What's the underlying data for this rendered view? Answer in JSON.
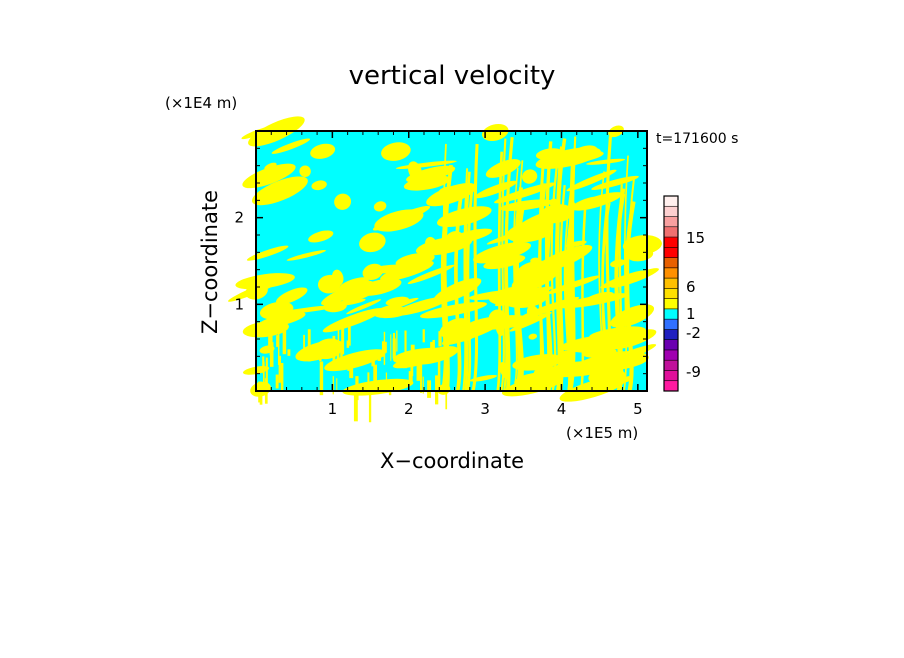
{
  "chart_data": {
    "type": "heatmap",
    "title": "vertical velocity",
    "xlabel": "X−coordinate",
    "ylabel": "Z−coordinate",
    "x_unit": "(×1E5 m)",
    "y_unit": "(×1E4 m)",
    "time_label": "t=171600 s",
    "xlim": [
      0,
      5.12
    ],
    "ylim": [
      0,
      3.0
    ],
    "x_ticks": [
      1,
      2,
      3,
      4,
      5
    ],
    "x_tick_labels": [
      "1",
      "2",
      "3",
      "4",
      "5"
    ],
    "y_ticks": [
      1,
      2
    ],
    "y_tick_labels": [
      "1",
      "2"
    ],
    "field_colors": {
      "positive": "#ffff00",
      "negative": "#00ffff"
    },
    "colorbar": {
      "colors": [
        "#ff1aa0",
        "#e0109a",
        "#c0109a",
        "#a000b0",
        "#6a00b0",
        "#2020c0",
        "#3070ff",
        "#00ffff",
        "#ffff00",
        "#ffe000",
        "#ffc000",
        "#ff9000",
        "#e86000",
        "#ff0000",
        "#ff0000",
        "#f07070",
        "#f8a0a0",
        "#fcd0d0",
        "#fff0ee"
      ],
      "tick_labels": [
        "-9",
        "-2",
        "1",
        "6",
        "15"
      ]
    }
  }
}
